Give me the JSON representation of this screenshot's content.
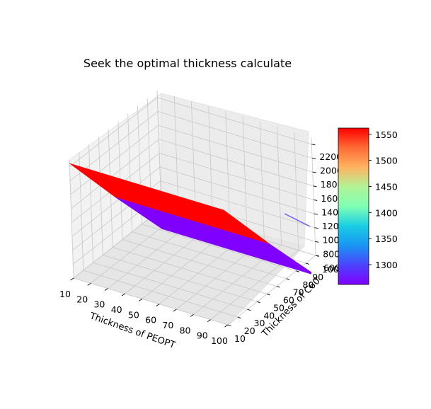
{
  "chart_data": {
    "type": "surface3d",
    "title": "Seek the optimal thickness calculate",
    "xlabel": "Thickness of PEOPT",
    "ylabel": "Thickness of C60",
    "zlabel": "",
    "x_ticks": [
      "10",
      "20",
      "30",
      "40",
      "50",
      "60",
      "70",
      "80",
      "90",
      "100"
    ],
    "y_ticks": [
      "10",
      "20",
      "30",
      "40",
      "50",
      "60",
      "70",
      "80",
      "90",
      "100"
    ],
    "z_ticks": [
      "600",
      "800",
      "1000",
      "1200",
      "1400",
      "1600",
      "1800",
      "2000",
      "2200"
    ],
    "xlim": [
      10,
      100
    ],
    "ylim": [
      10,
      100
    ],
    "zlim": [
      600,
      2300
    ],
    "colormap": "rainbow",
    "colorbar": {
      "ticks": [
        "1300",
        "1350",
        "1400",
        "1450",
        "1500",
        "1550"
      ],
      "range": [
        1262,
        1562
      ]
    },
    "surfaces": [
      {
        "color": "#ff0000",
        "corners": [
          {
            "x": 10,
            "y": 10,
            "z": 2250
          },
          {
            "x": 100,
            "y": 10,
            "z": 2250
          },
          {
            "x": 100,
            "y": 55,
            "z": 1260
          },
          {
            "x": 10,
            "y": 55,
            "z": 1260
          }
        ]
      },
      {
        "color": "#8000ff",
        "corners": [
          {
            "x": 10,
            "y": 55,
            "z": 1260
          },
          {
            "x": 100,
            "y": 55,
            "z": 1260
          },
          {
            "x": 100,
            "y": 100,
            "z": 310
          },
          {
            "x": 10,
            "y": 100,
            "z": 310
          }
        ]
      }
    ]
  }
}
